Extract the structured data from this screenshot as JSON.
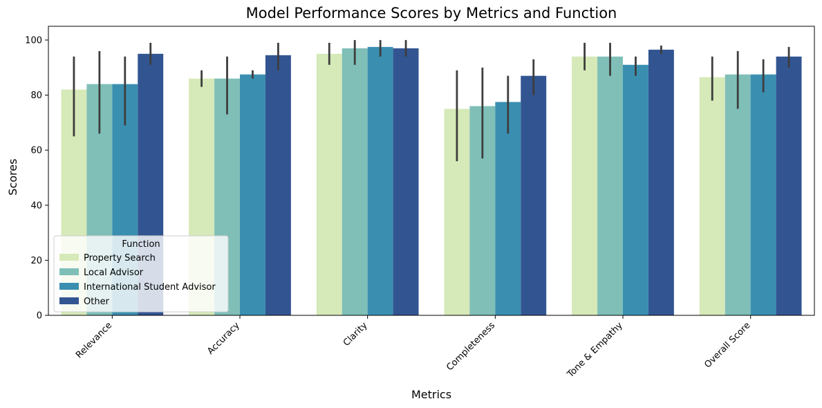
{
  "chart_data": {
    "type": "bar",
    "title": "Model Performance Scores by Metrics and Function",
    "xlabel": "Metrics",
    "ylabel": "Scores",
    "ylim": [
      0,
      105
    ],
    "yticks": [
      0,
      20,
      40,
      60,
      80,
      100
    ],
    "categories": [
      "Relevance",
      "Accuracy",
      "Clarity",
      "Completeness",
      "Tone & Empathy",
      "Overall Score"
    ],
    "series": [
      {
        "name": "Property Search",
        "color": "#d6e9b8",
        "values": [
          82,
          86,
          95,
          75,
          94,
          86.5
        ],
        "error_low": [
          65,
          83,
          91,
          56,
          89,
          78
        ],
        "error_high": [
          94,
          89,
          99,
          89,
          99,
          94
        ]
      },
      {
        "name": "Local Advisor",
        "color": "#7fbfb8",
        "values": [
          84,
          86,
          97,
          76,
          94,
          87.5
        ],
        "error_low": [
          66,
          73,
          91,
          57,
          87,
          75
        ],
        "error_high": [
          96,
          94,
          100,
          90,
          99,
          96
        ]
      },
      {
        "name": "International Student Advisor",
        "color": "#3a8fb0",
        "values": [
          84,
          87.5,
          97.5,
          77.5,
          91,
          87.5
        ],
        "error_low": [
          69,
          86,
          94,
          66,
          87,
          81
        ],
        "error_high": [
          94,
          89,
          100,
          87,
          94,
          93
        ]
      },
      {
        "name": "Other",
        "color": "#325592",
        "values": [
          95,
          94.5,
          97,
          87,
          96.5,
          94
        ],
        "error_low": [
          91,
          89,
          94,
          80,
          95,
          90
        ],
        "error_high": [
          99,
          99,
          100,
          93,
          98,
          97.5
        ]
      }
    ],
    "legend": {
      "title": "Function",
      "position": "lower-left"
    },
    "grid": false
  }
}
